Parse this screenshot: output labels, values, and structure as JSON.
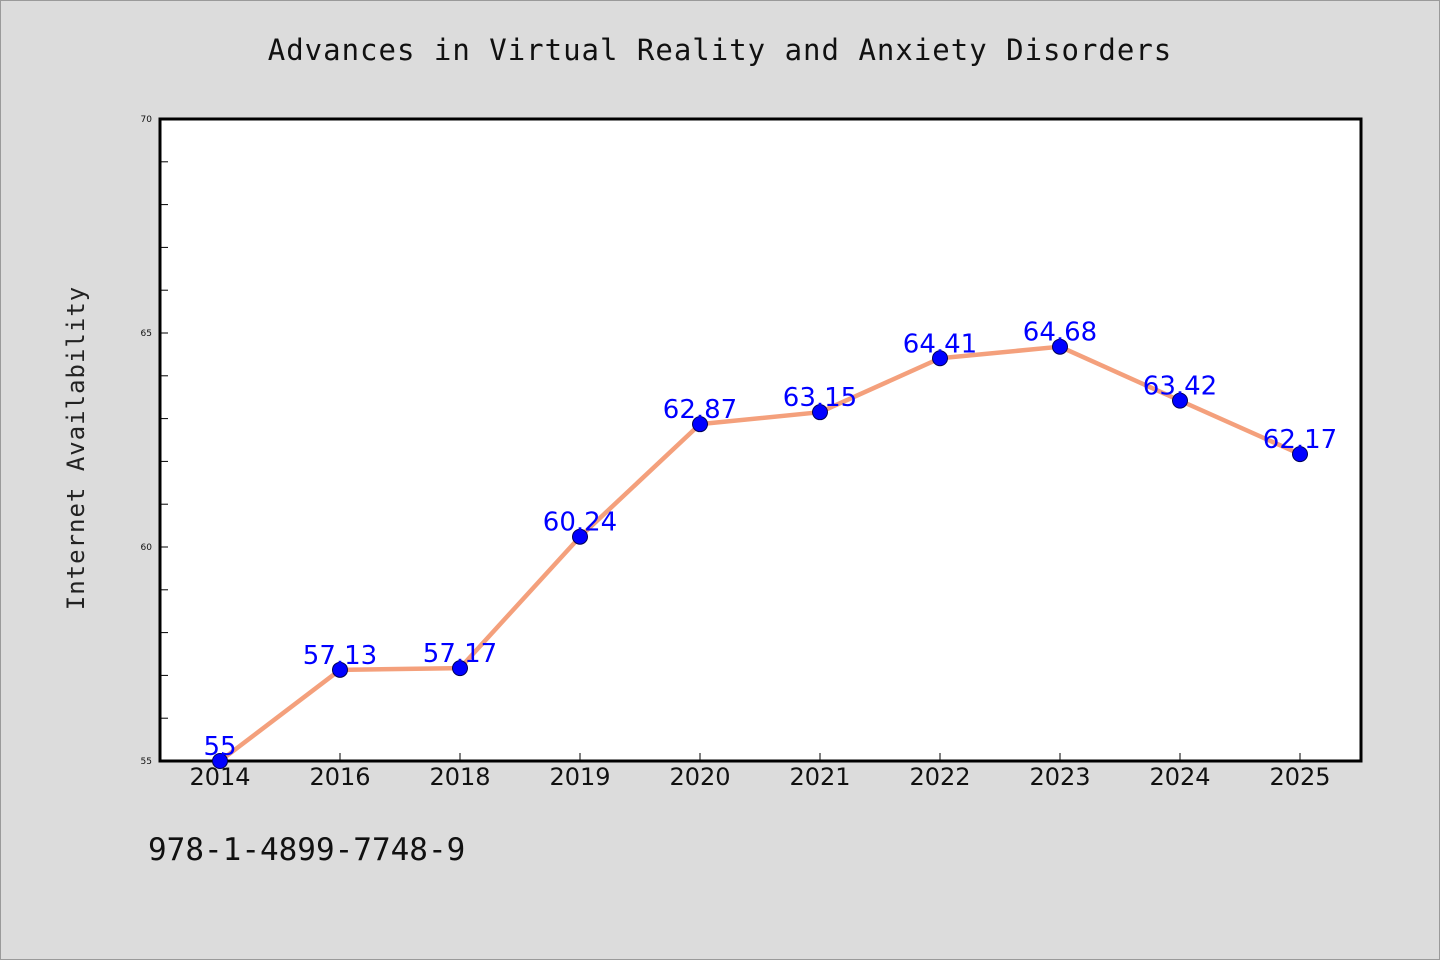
{
  "chart_data": {
    "type": "line",
    "title": "Advances in Virtual Reality and Anxiety Disorders",
    "xlabel": "",
    "ylabel": "Internet Availability",
    "categories": [
      "2014",
      "2016",
      "2018",
      "2019",
      "2020",
      "2021",
      "2022",
      "2023",
      "2024",
      "2025"
    ],
    "series": [
      {
        "values": [
          55,
          57.13,
          57.17,
          60.24,
          62.87,
          63.15,
          64.41,
          64.68,
          63.42,
          62.17
        ],
        "labels": [
          "55",
          "57.13",
          "57.17",
          "60.24",
          "62.87",
          "63.15",
          "64.41",
          "64.68",
          "63.42",
          "62.17"
        ],
        "line_color": "#f4a07c",
        "marker_color": "#0000ff"
      }
    ],
    "ylim": [
      55,
      70
    ],
    "yticks": [
      "55",
      "60",
      "65",
      "70"
    ],
    "grid": false,
    "legend": "none"
  },
  "footer": {
    "id_text": "978-1-4899-7748-9"
  }
}
